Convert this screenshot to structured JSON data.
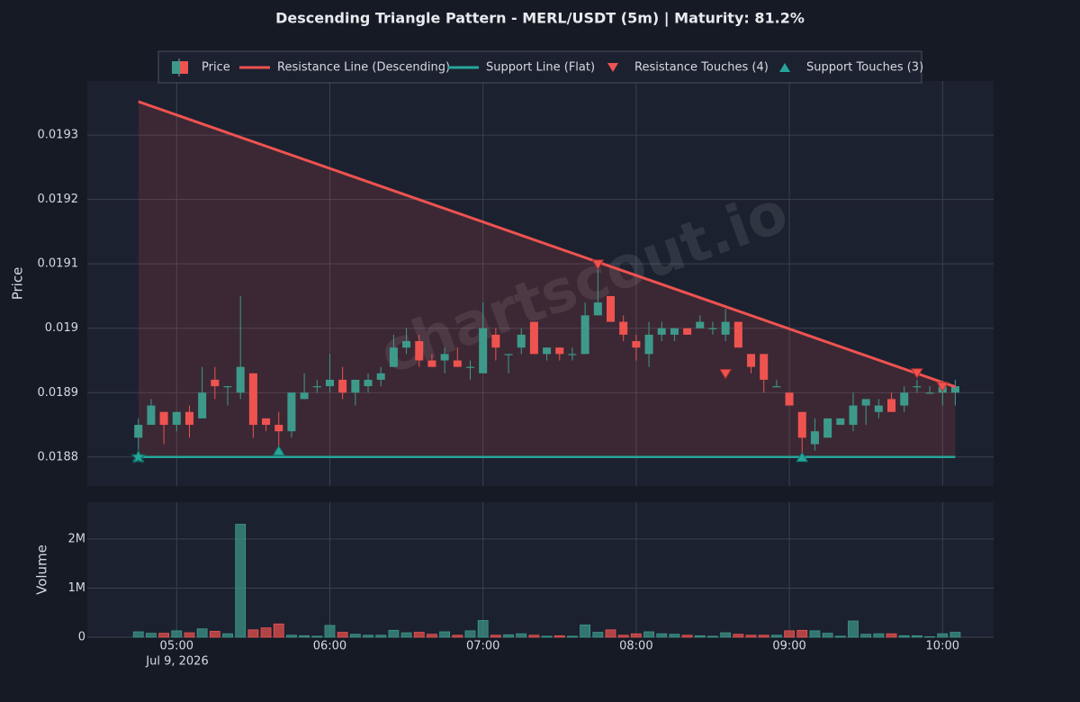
{
  "chart_data": {
    "type": "candlestick",
    "title": "Descending Triangle Pattern - MERL/USDT (5m) | Maturity: 81.2%",
    "watermark": "chartscout.io",
    "price_name": "Price",
    "ylabel": "Price",
    "volume_ylabel": "Volume",
    "x": [
      "04:45",
      "04:50",
      "04:55",
      "05:00",
      "05:05",
      "05:10",
      "05:15",
      "05:20",
      "05:25",
      "05:30",
      "05:35",
      "05:40",
      "05:45",
      "05:50",
      "05:55",
      "06:00",
      "06:05",
      "06:10",
      "06:15",
      "06:20",
      "06:25",
      "06:30",
      "06:35",
      "06:40",
      "06:45",
      "06:50",
      "06:55",
      "07:00",
      "07:05",
      "07:10",
      "07:15",
      "07:20",
      "07:25",
      "07:30",
      "07:35",
      "07:40",
      "07:45",
      "07:50",
      "07:55",
      "08:00",
      "08:05",
      "08:10",
      "08:15",
      "08:20",
      "08:25",
      "08:30",
      "08:35",
      "08:40",
      "08:45",
      "08:50",
      "08:55",
      "09:00",
      "09:05",
      "09:10",
      "09:15",
      "09:20",
      "09:25",
      "09:30",
      "09:35",
      "09:40",
      "09:45",
      "09:50",
      "09:55",
      "10:00",
      "10:05"
    ],
    "open": [
      0.01883,
      0.01885,
      0.01887,
      0.01885,
      0.01887,
      0.01886,
      0.01892,
      0.01891,
      0.0189,
      0.01893,
      0.01886,
      0.01885,
      0.01884,
      0.01889,
      0.01891,
      0.01891,
      0.01892,
      0.0189,
      0.01891,
      0.01892,
      0.01894,
      0.01897,
      0.01898,
      0.01895,
      0.01895,
      0.01895,
      0.01894,
      0.01893,
      0.01899,
      0.01896,
      0.01897,
      0.01901,
      0.01896,
      0.01897,
      0.01896,
      0.01896,
      0.01902,
      0.01905,
      0.01901,
      0.01898,
      0.01896,
      0.01899,
      0.01899,
      0.019,
      0.019,
      0.019,
      0.01899,
      0.01901,
      0.01896,
      0.01896,
      0.01891,
      0.0189,
      0.01887,
      0.01882,
      0.01883,
      0.01885,
      0.01885,
      0.01888,
      0.01887,
      0.01889,
      0.01888,
      0.01891,
      0.0189,
      0.0189,
      0.0189
    ],
    "high": [
      0.01886,
      0.01889,
      0.01887,
      0.01887,
      0.01888,
      0.01894,
      0.01894,
      0.01891,
      0.01905,
      0.01893,
      0.01886,
      0.01887,
      0.0189,
      0.01893,
      0.01892,
      0.01896,
      0.01894,
      0.01892,
      0.01893,
      0.01894,
      0.01899,
      0.019,
      0.01899,
      0.01896,
      0.01897,
      0.01897,
      0.01895,
      0.01904,
      0.019,
      0.01896,
      0.019,
      0.01901,
      0.01897,
      0.01897,
      0.01897,
      0.01904,
      0.0191,
      0.01905,
      0.01902,
      0.01899,
      0.01901,
      0.01901,
      0.019,
      0.019,
      0.01902,
      0.01901,
      0.01903,
      0.01901,
      0.01896,
      0.01896,
      0.01892,
      0.0189,
      0.01887,
      0.01886,
      0.01886,
      0.01886,
      0.0189,
      0.01889,
      0.01889,
      0.0189,
      0.01891,
      0.01892,
      0.01891,
      0.01891,
      0.01892
    ],
    "low": [
      0.0188,
      0.01885,
      0.01882,
      0.01884,
      0.01883,
      0.01886,
      0.01889,
      0.01888,
      0.01889,
      0.01883,
      0.01884,
      0.01881,
      0.01883,
      0.01889,
      0.0189,
      0.0189,
      0.01889,
      0.01888,
      0.0189,
      0.01891,
      0.01894,
      0.01896,
      0.01894,
      0.01894,
      0.01893,
      0.01894,
      0.01892,
      0.01893,
      0.01895,
      0.01893,
      0.01896,
      0.01896,
      0.01895,
      0.01895,
      0.01895,
      0.01896,
      0.01902,
      0.01901,
      0.01898,
      0.01895,
      0.01894,
      0.01898,
      0.01898,
      0.01899,
      0.019,
      0.01899,
      0.01898,
      0.01897,
      0.01893,
      0.0189,
      0.01891,
      0.01888,
      0.0188,
      0.01881,
      0.01883,
      0.01885,
      0.01884,
      0.01885,
      0.01886,
      0.01887,
      0.01887,
      0.0189,
      0.0189,
      0.01888,
      0.01888
    ],
    "close": [
      0.01885,
      0.01888,
      0.01885,
      0.01887,
      0.01885,
      0.0189,
      0.01891,
      0.01891,
      0.01894,
      0.01885,
      0.01885,
      0.01884,
      0.0189,
      0.0189,
      0.01891,
      0.01892,
      0.0189,
      0.01892,
      0.01892,
      0.01893,
      0.01897,
      0.01898,
      0.01895,
      0.01894,
      0.01896,
      0.01894,
      0.01894,
      0.019,
      0.01897,
      0.01896,
      0.01899,
      0.01896,
      0.01897,
      0.01896,
      0.01896,
      0.01902,
      0.01904,
      0.01901,
      0.01899,
      0.01897,
      0.01899,
      0.019,
      0.019,
      0.01899,
      0.01901,
      0.019,
      0.01901,
      0.01897,
      0.01894,
      0.01892,
      0.01891,
      0.01888,
      0.01883,
      0.01884,
      0.01886,
      0.01886,
      0.01888,
      0.01889,
      0.01888,
      0.01887,
      0.0189,
      0.01891,
      0.0189,
      0.01891,
      0.01891
    ],
    "volume": [
      110000,
      80000,
      80000,
      130000,
      90000,
      170000,
      120000,
      70000,
      2300000,
      150000,
      190000,
      270000,
      40000,
      30000,
      20000,
      240000,
      100000,
      60000,
      40000,
      40000,
      140000,
      90000,
      100000,
      60000,
      110000,
      40000,
      130000,
      340000,
      40000,
      50000,
      70000,
      40000,
      20000,
      30000,
      20000,
      250000,
      100000,
      150000,
      40000,
      70000,
      110000,
      70000,
      60000,
      40000,
      30000,
      20000,
      90000,
      60000,
      40000,
      40000,
      40000,
      130000,
      140000,
      130000,
      80000,
      20000,
      330000,
      60000,
      70000,
      70000,
      30000,
      30000,
      10000,
      70000,
      100000
    ],
    "up_color": "#3d9a8b",
    "down_color": "#ef5350",
    "xlim": [
      "04:25",
      "10:20"
    ],
    "xticks": [
      "05:00",
      "06:00",
      "07:00",
      "08:00",
      "09:00",
      "10:00"
    ],
    "x_date_label": "Jul 9, 2026",
    "ylim": [
      0.018755,
      0.019384
    ],
    "yticks": [
      0.0188,
      0.0189,
      0.019,
      0.0191,
      0.0192,
      0.0193
    ],
    "volume_ylim": [
      0,
      2750000
    ],
    "volume_yticks": [
      0,
      {
        "value": 1000000,
        "label": "1M"
      },
      {
        "value": 2000000,
        "label": "2M"
      }
    ],
    "grid": true,
    "resistance": {
      "name": "Resistance Line (Descending)",
      "color": "#ef5350",
      "x": [
        "04:45",
        "10:05"
      ],
      "values": [
        0.019352,
        0.018909
      ]
    },
    "support": {
      "name": "Support Line (Flat)",
      "color": "#26a69a",
      "x": [
        "04:45",
        "10:05"
      ],
      "values": [
        0.0188,
        0.0188
      ]
    },
    "resistance_touches": {
      "name": "Resistance Touches (4)",
      "color": "#ef5350",
      "x": [
        "07:45",
        "08:35",
        "09:50",
        "10:00"
      ],
      "values": [
        0.019099,
        0.018929,
        0.01893,
        0.018909
      ]
    },
    "support_touches": {
      "name": "Support Touches (3)",
      "color": "#26a69a",
      "x": [
        "04:45",
        "05:40",
        "09:05"
      ],
      "values": [
        0.0188,
        0.01881,
        0.0188
      ]
    }
  }
}
